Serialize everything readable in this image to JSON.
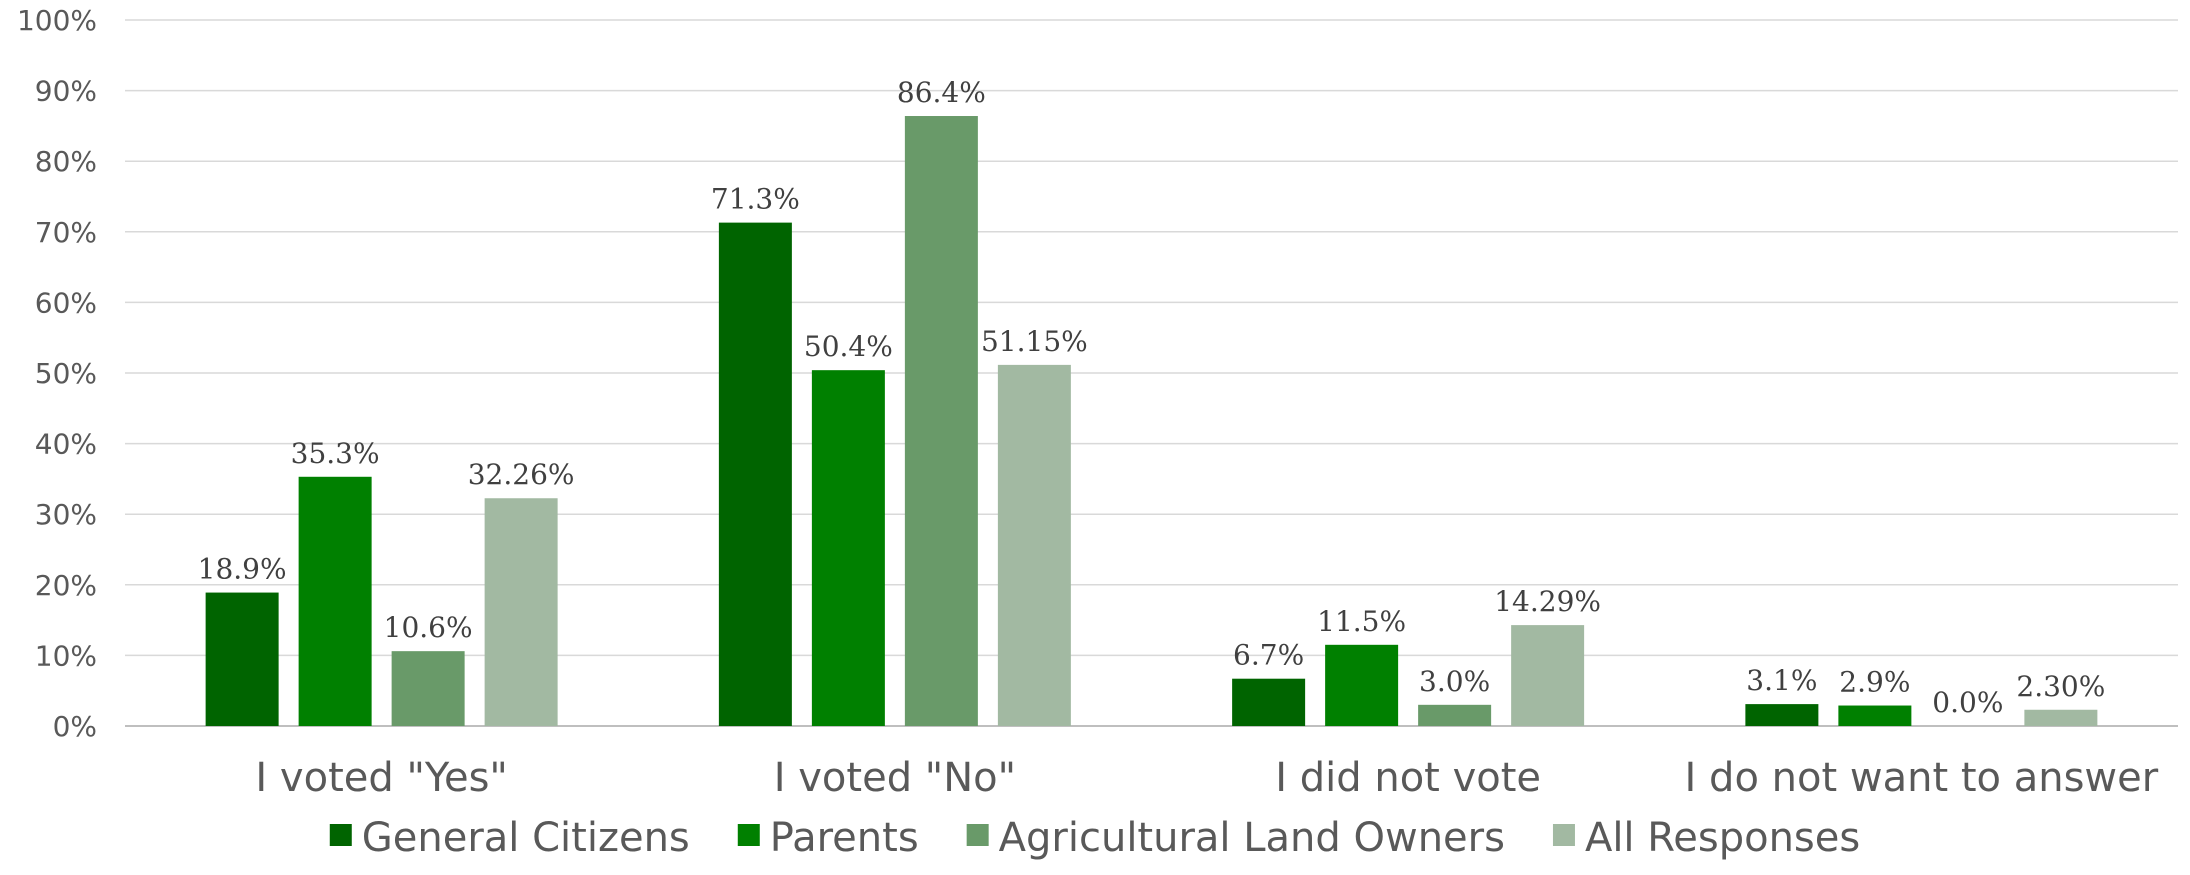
{
  "chart_data": {
    "type": "bar",
    "categories": [
      "I voted \"Yes\"",
      "I voted \"No\"",
      "I did not vote",
      "I do not want to answer"
    ],
    "series": [
      {
        "name": "General Citizens",
        "color": "#006400",
        "values": [
          18.9,
          71.3,
          6.7,
          3.1
        ],
        "labels": [
          "18.9%",
          "71.3%",
          "6.7%",
          "3.1%"
        ]
      },
      {
        "name": "Parents",
        "color": "#008000",
        "values": [
          35.3,
          50.4,
          11.5,
          2.9
        ],
        "labels": [
          "35.3%",
          "50.4%",
          "11.5%",
          "2.9%"
        ]
      },
      {
        "name": "Agricultural Land Owners",
        "color": "#699a69",
        "values": [
          10.6,
          86.4,
          3.0,
          0.0
        ],
        "labels": [
          "10.6%",
          "86.4%",
          "3.0%",
          "0.0%"
        ]
      },
      {
        "name": "All Responses",
        "color": "#a2b9a2",
        "values": [
          32.26,
          51.15,
          14.29,
          2.3
        ],
        "labels": [
          "32.26%",
          "51.15%",
          "14.29%",
          "2.30%"
        ]
      }
    ],
    "ylim": [
      0,
      100
    ],
    "yticks": [
      "0%",
      "10%",
      "20%",
      "30%",
      "40%",
      "50%",
      "60%",
      "70%",
      "80%",
      "90%",
      "100%"
    ],
    "title": "",
    "xlabel": "",
    "ylabel": "",
    "grid": true,
    "legend": "bottom"
  }
}
